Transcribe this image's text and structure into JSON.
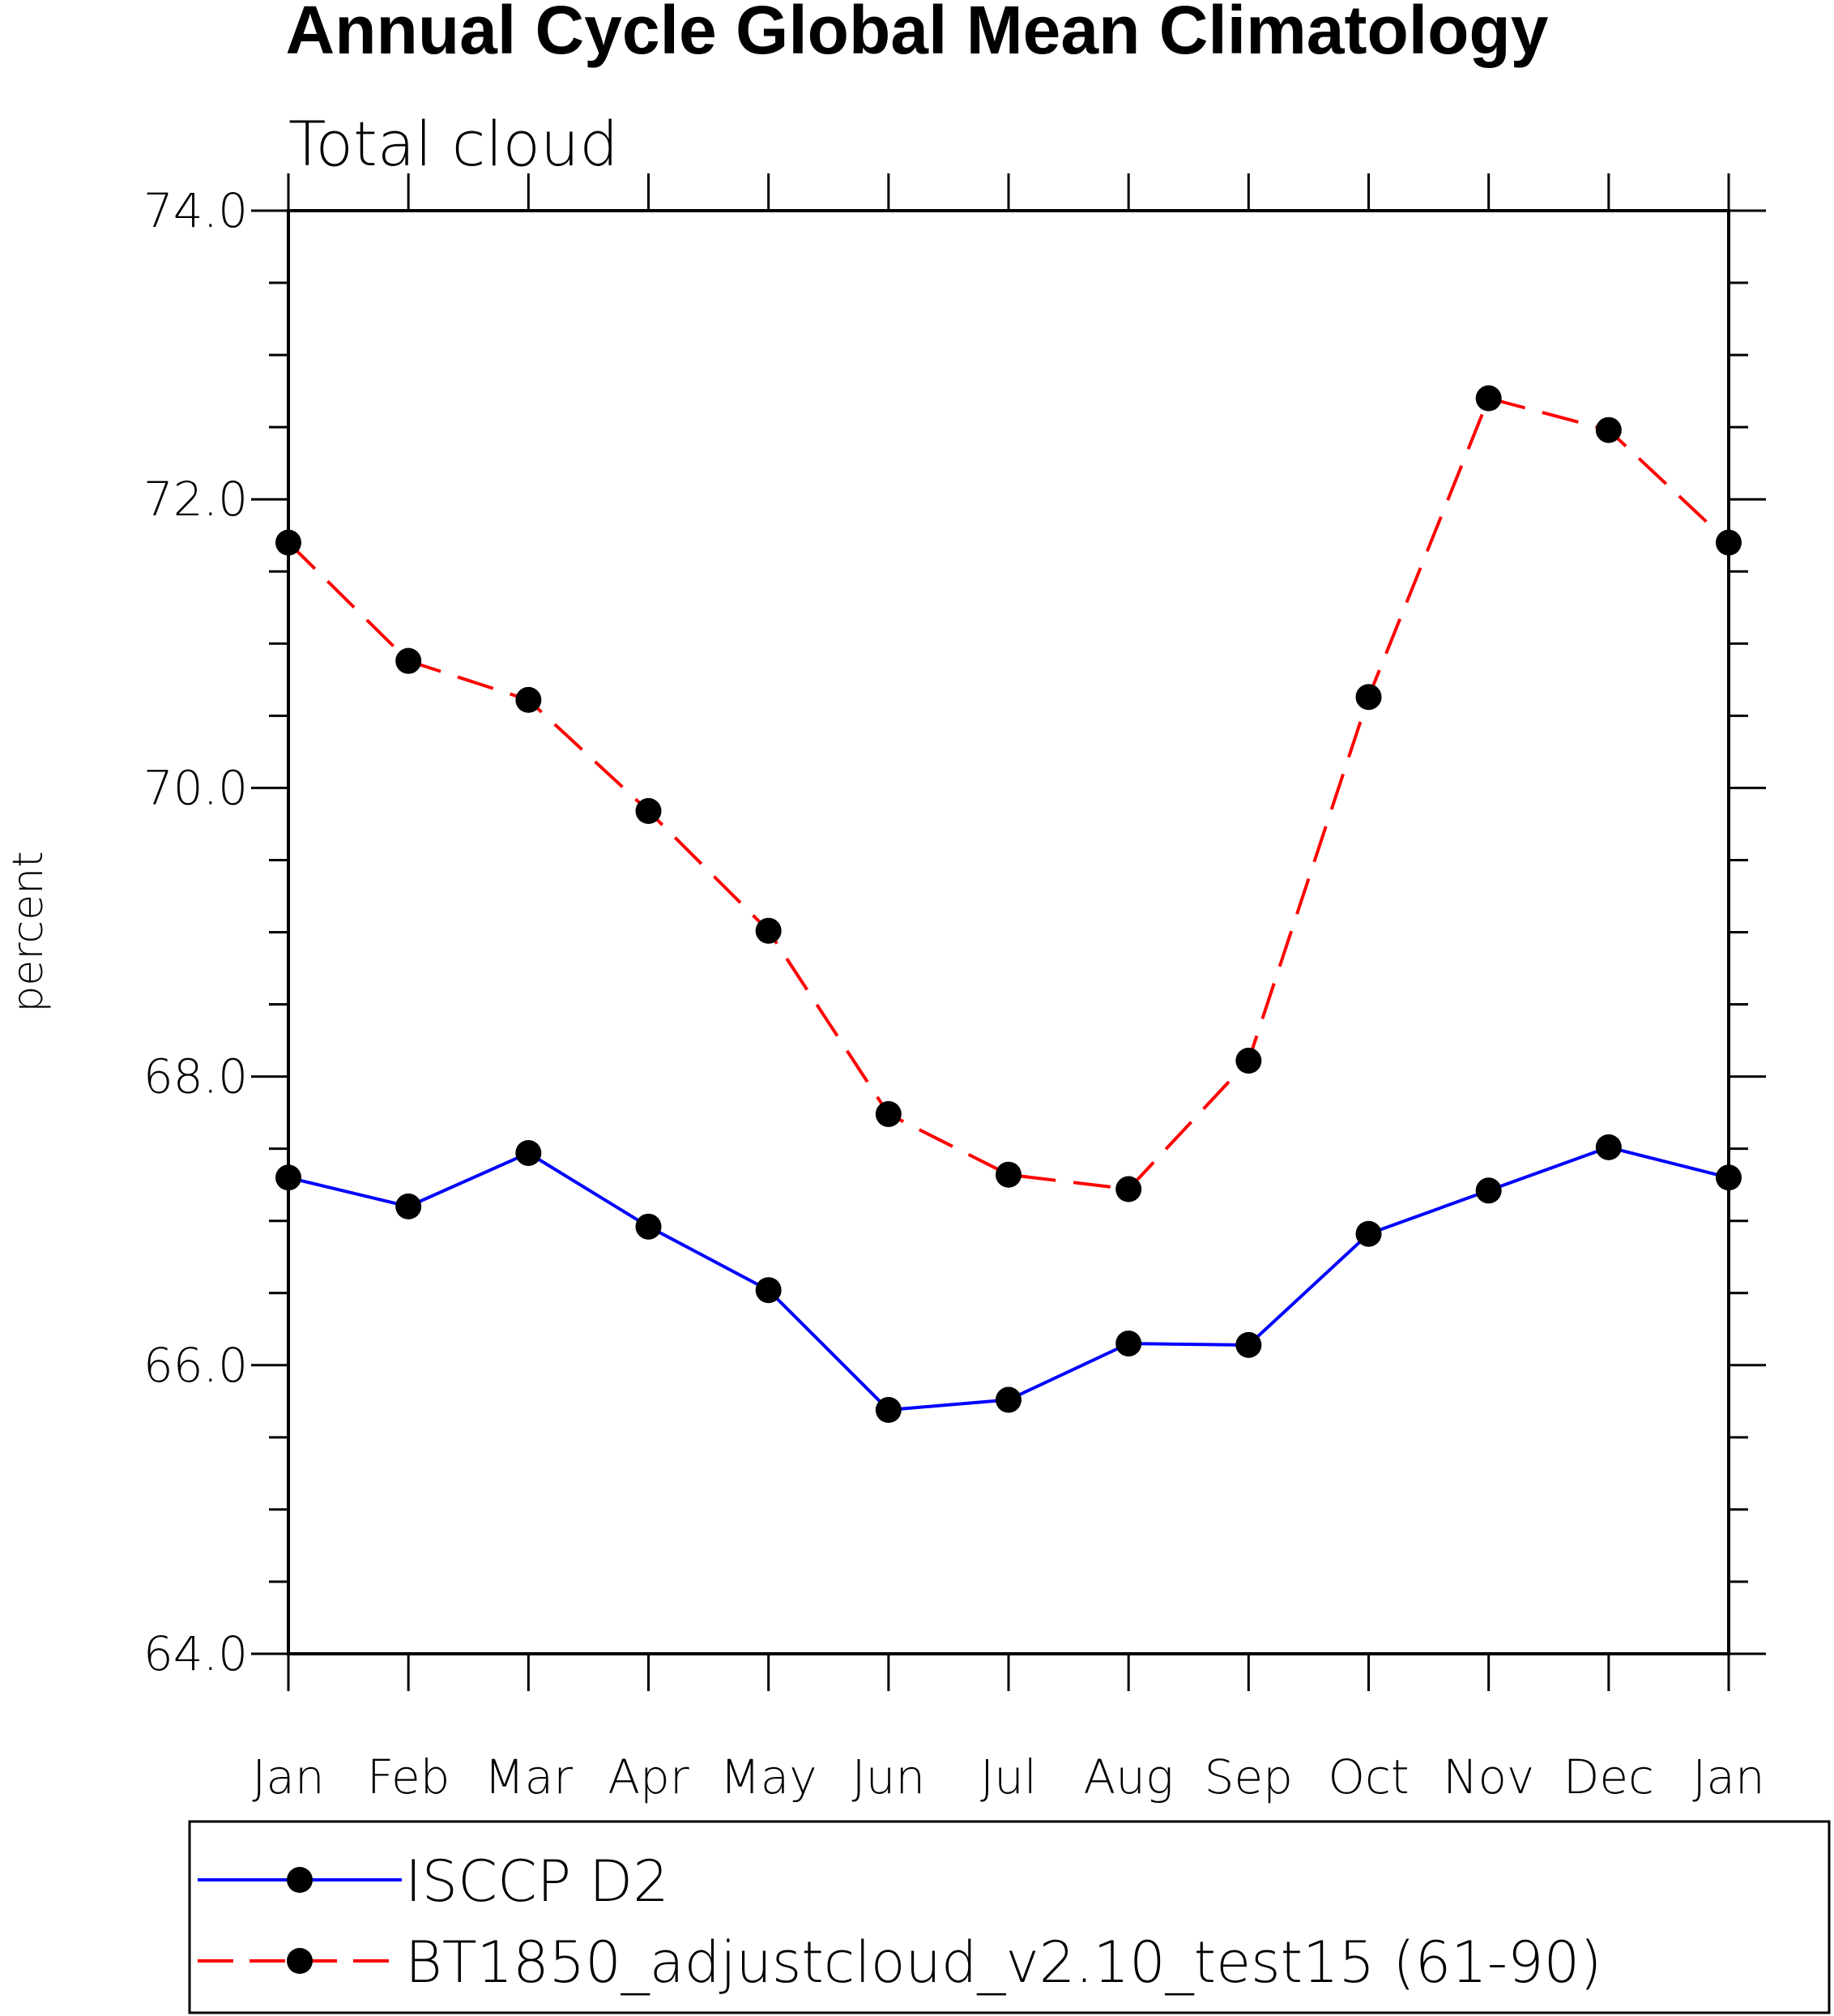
{
  "chart_data": {
    "type": "line",
    "title": "Annual Cycle Global Mean Climatology",
    "subtitle": "Total cloud",
    "ylabel": "percent",
    "xlabel": "",
    "categories": [
      "Jan",
      "Feb",
      "Mar",
      "Apr",
      "May",
      "Jun",
      "Jul",
      "Aug",
      "Sep",
      "Oct",
      "Nov",
      "Dec",
      "Jan"
    ],
    "ylim": [
      64.0,
      74.0
    ],
    "yticks": [
      "64.0",
      "66.0",
      "68.0",
      "70.0",
      "72.0",
      "74.0"
    ],
    "series": [
      {
        "name": "ISCCP D2",
        "color": "#0000ff",
        "style": "solid",
        "marker": "filled-circle",
        "values": [
          67.3,
          67.1,
          67.47,
          66.96,
          66.52,
          65.69,
          65.76,
          66.15,
          66.14,
          66.91,
          67.21,
          67.51,
          67.3
        ]
      },
      {
        "name": "BT1850_adjustcloud_v2.10_test15 (61-90)",
        "color": "#ff0000",
        "style": "dashed",
        "marker": "filled-circle",
        "values": [
          71.7,
          70.88,
          70.61,
          69.84,
          69.01,
          67.74,
          67.32,
          67.22,
          68.11,
          70.63,
          72.7,
          72.48,
          71.7
        ]
      }
    ],
    "grid": false,
    "legend_position": "bottom"
  }
}
